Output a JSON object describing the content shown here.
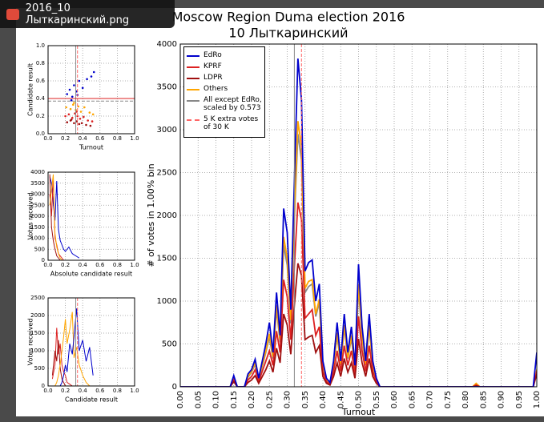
{
  "window": {
    "title": "2016_10 Лыткаринский.png"
  },
  "chart_data": [
    {
      "type": "line",
      "title": "Moscow Region Duma election 2016",
      "subtitle": "10 Лыткаринский",
      "x_label": "Turnout",
      "y_label": "# of votes in 1.00% bin",
      "x": [
        0,
        0.14,
        0.15,
        0.16,
        0.17,
        0.18,
        0.19,
        0.2,
        0.21,
        0.22,
        0.23,
        0.24,
        0.25,
        0.26,
        0.27,
        0.28,
        0.29,
        0.3,
        0.31,
        0.32,
        0.33,
        0.34,
        0.35,
        0.36,
        0.37,
        0.38,
        0.39,
        0.4,
        0.41,
        0.42,
        0.43,
        0.44,
        0.45,
        0.46,
        0.47,
        0.48,
        0.49,
        0.5,
        0.51,
        0.52,
        0.53,
        0.54,
        0.55,
        0.56,
        0.57,
        0.58,
        0.82,
        0.83,
        0.84,
        0.99,
        1.0
      ],
      "series": [
        {
          "name": "All except EdRo, scaled by 0.573",
          "color": "#888888",
          "values": [
            0,
            0,
            100,
            0,
            0,
            0,
            110,
            170,
            260,
            80,
            240,
            400,
            580,
            330,
            900,
            520,
            1650,
            1420,
            740,
            1950,
            2950,
            2650,
            1100,
            1170,
            1200,
            820,
            980,
            250,
            85,
            40,
            250,
            600,
            250,
            690,
            330,
            570,
            200,
            1150,
            570,
            250,
            690,
            250,
            85,
            0,
            0,
            0,
            0,
            35,
            0,
            0,
            190
          ]
        },
        {
          "name": "Others",
          "color": "#ffa500",
          "values": [
            0,
            0,
            110,
            0,
            0,
            0,
            120,
            180,
            280,
            90,
            260,
            420,
            620,
            350,
            950,
            550,
            1750,
            1500,
            780,
            2050,
            3100,
            2800,
            1150,
            1230,
            1250,
            850,
            1020,
            260,
            90,
            40,
            260,
            630,
            260,
            720,
            340,
            600,
            210,
            1200,
            600,
            260,
            720,
            260,
            90,
            0,
            0,
            0,
            0,
            40,
            0,
            0,
            200
          ]
        },
        {
          "name": "KPRF",
          "color": "#dd2222",
          "values": [
            0,
            0,
            80,
            0,
            0,
            0,
            80,
            120,
            200,
            60,
            180,
            300,
            420,
            250,
            650,
            400,
            1250,
            1050,
            550,
            1400,
            2150,
            1950,
            800,
            850,
            900,
            600,
            700,
            180,
            60,
            30,
            180,
            420,
            180,
            480,
            250,
            420,
            150,
            820,
            420,
            180,
            480,
            180,
            60,
            0,
            0,
            0,
            0,
            20,
            0,
            0,
            180
          ]
        },
        {
          "name": "LDPR",
          "color": "#a01010",
          "values": [
            0,
            0,
            60,
            0,
            0,
            0,
            50,
            80,
            130,
            40,
            120,
            200,
            300,
            170,
            450,
            280,
            850,
            720,
            380,
            950,
            1440,
            1300,
            550,
            580,
            600,
            400,
            480,
            120,
            40,
            20,
            120,
            280,
            120,
            330,
            170,
            280,
            100,
            560,
            280,
            120,
            330,
            120,
            40,
            0,
            0,
            0,
            0,
            10,
            0,
            0,
            150
          ]
        },
        {
          "name": "EdRo",
          "color": "#0000cc",
          "values": [
            0,
            0,
            130,
            0,
            0,
            0,
            150,
            200,
            320,
            100,
            300,
            500,
            750,
            400,
            1100,
            600,
            2080,
            1800,
            900,
            2400,
            3830,
            3350,
            1350,
            1450,
            1480,
            1000,
            1200,
            300,
            100,
            50,
            300,
            750,
            300,
            850,
            400,
            700,
            250,
            1430,
            700,
            300,
            850,
            300,
            100,
            0,
            0,
            0,
            0,
            0,
            0,
            0,
            400
          ]
        }
      ],
      "legend_order": [
        4,
        2,
        3,
        1,
        0
      ],
      "vlines": [
        {
          "value": 0.32,
          "color": "#888888"
        },
        {
          "value": 0.34,
          "color": "#ff6666",
          "dashed": true,
          "name": "5 K extra votes of 30 K"
        }
      ],
      "xlim": [
        0,
        1
      ],
      "ylim": [
        0,
        4000
      ],
      "xticks": [
        {
          "value": 0,
          "label": "0.00"
        },
        {
          "value": 0.05,
          "label": "0.05"
        },
        {
          "value": 0.1,
          "label": "0.10"
        },
        {
          "value": 0.15,
          "label": "0.15"
        },
        {
          "value": 0.2,
          "label": "0.20"
        },
        {
          "value": 0.25,
          "label": "0.25"
        },
        {
          "value": 0.3,
          "label": "0.30"
        },
        {
          "value": 0.35,
          "label": "0.35"
        },
        {
          "value": 0.4,
          "label": "0.40"
        },
        {
          "value": 0.45,
          "label": "0.45"
        },
        {
          "value": 0.5,
          "label": "0.50"
        },
        {
          "value": 0.55,
          "label": "0.55"
        },
        {
          "value": 0.6,
          "label": "0.60"
        },
        {
          "value": 0.65,
          "label": "0.65"
        },
        {
          "value": 0.7,
          "label": "0.70"
        },
        {
          "value": 0.75,
          "label": "0.75"
        },
        {
          "value": 0.8,
          "label": "0.80"
        },
        {
          "value": 0.85,
          "label": "0.85"
        },
        {
          "value": 0.9,
          "label": "0.90"
        },
        {
          "value": 0.95,
          "label": "0.95"
        },
        {
          "value": 1,
          "label": "1.00"
        }
      ],
      "yticks": [
        0,
        500,
        1000,
        1500,
        2000,
        2500,
        3000,
        3500,
        4000
      ],
      "grid": true
    },
    {
      "type": "scatter",
      "x_label": "Turnout",
      "y_label": "Candidate result",
      "series": [
        {
          "color": "#0000cc",
          "x": [
            0.22,
            0.25,
            0.28,
            0.3,
            0.33,
            0.36,
            0.4,
            0.45,
            0.5,
            0.53,
            0.27,
            0.34
          ],
          "values": [
            0.45,
            0.5,
            0.42,
            0.55,
            0.48,
            0.6,
            0.52,
            0.62,
            0.65,
            0.7,
            0.38,
            0.44
          ]
        },
        {
          "color": "#ffa500",
          "x": [
            0.21,
            0.26,
            0.29,
            0.32,
            0.35,
            0.38,
            0.42,
            0.48,
            0.52,
            0.3
          ],
          "values": [
            0.3,
            0.28,
            0.33,
            0.27,
            0.31,
            0.25,
            0.3,
            0.24,
            0.22,
            0.35
          ]
        },
        {
          "color": "#dd2222",
          "x": [
            0.2,
            0.24,
            0.28,
            0.31,
            0.34,
            0.37,
            0.41,
            0.46,
            0.51,
            0.33
          ],
          "values": [
            0.2,
            0.22,
            0.18,
            0.23,
            0.2,
            0.17,
            0.19,
            0.15,
            0.14,
            0.25
          ]
        },
        {
          "color": "#a01010",
          "x": [
            0.22,
            0.26,
            0.3,
            0.33,
            0.36,
            0.39,
            0.44,
            0.49,
            0.27
          ],
          "values": [
            0.13,
            0.15,
            0.12,
            0.14,
            0.11,
            0.12,
            0.1,
            0.09,
            0.16
          ]
        }
      ],
      "hlines": [
        {
          "value": 0.4,
          "color": "#dd2222"
        },
        {
          "value": 0.37,
          "color": "#888888",
          "dashed": true
        }
      ],
      "vlines": [
        {
          "value": 0.32,
          "color": "#888888"
        },
        {
          "value": 0.34,
          "color": "#ff6666",
          "dashed": true
        }
      ],
      "xlim": [
        0,
        1
      ],
      "ylim": [
        0,
        1
      ],
      "xticks": [
        {
          "value": 0,
          "label": "0.0"
        },
        {
          "value": 0.2,
          "label": "0.2"
        },
        {
          "value": 0.4,
          "label": "0.4"
        },
        {
          "value": 0.6,
          "label": "0.6"
        },
        {
          "value": 0.8,
          "label": "0.8"
        },
        {
          "value": 1,
          "label": "1.0"
        }
      ],
      "yticks": [
        {
          "value": 0,
          "label": "0.0"
        },
        {
          "value": 0.2,
          "label": "0.2"
        },
        {
          "value": 0.4,
          "label": "0.4"
        },
        {
          "value": 0.6,
          "label": "0.6"
        },
        {
          "value": 0.8,
          "label": "0.8"
        },
        {
          "value": 1,
          "label": "1.0"
        }
      ],
      "grid": true
    },
    {
      "type": "line",
      "x_label": "Absolute candidate result",
      "y_label": "Votes received",
      "x": [
        0.02,
        0.04,
        0.06,
        0.08,
        0.1,
        0.12,
        0.14,
        0.16,
        0.18,
        0.2,
        0.24,
        0.28,
        0.32,
        0.36
      ],
      "series": [
        {
          "color": "#0000cc",
          "values": [
            3800,
            3500,
            2600,
            1800,
            3600,
            1400,
            900,
            700,
            500,
            400,
            600,
            300,
            200,
            100
          ]
        },
        {
          "color": "#dd2222",
          "values": [
            3000,
            2000,
            3700,
            1000,
            700,
            300,
            200,
            100,
            0,
            0,
            0,
            0,
            0,
            0
          ]
        },
        {
          "color": "#a01010",
          "values": [
            3900,
            1500,
            900,
            500,
            200,
            100,
            0,
            0,
            0,
            0,
            0,
            0,
            0,
            0
          ]
        },
        {
          "color": "#ffa500",
          "values": [
            2500,
            3200,
            3900,
            1200,
            600,
            300,
            100,
            0,
            0,
            0,
            0,
            0,
            0,
            0
          ]
        }
      ],
      "xlim": [
        0,
        1
      ],
      "ylim": [
        0,
        4000
      ],
      "xticks": [
        {
          "value": 0,
          "label": "0.0"
        },
        {
          "value": 0.2,
          "label": "0.2"
        },
        {
          "value": 0.4,
          "label": "0.4"
        },
        {
          "value": 0.6,
          "label": "0.6"
        },
        {
          "value": 0.8,
          "label": "0.8"
        },
        {
          "value": 1,
          "label": "1.0"
        }
      ],
      "yticks": [
        0,
        500,
        1000,
        1500,
        2000,
        2500,
        3000,
        3500,
        4000
      ],
      "grid": true
    },
    {
      "type": "line",
      "x_label": "Candidate result",
      "y_label": "Votes received",
      "x": [
        0.05,
        0.08,
        0.1,
        0.12,
        0.14,
        0.16,
        0.18,
        0.2,
        0.22,
        0.25,
        0.28,
        0.3,
        0.33,
        0.36,
        0.4,
        0.44,
        0.48,
        0.52
      ],
      "series": [
        {
          "color": "#dd2222",
          "values": [
            200,
            600,
            1650,
            900,
            1200,
            600,
            400,
            300,
            100,
            50,
            0,
            0,
            0,
            0,
            0,
            0,
            0,
            0
          ]
        },
        {
          "color": "#a01010",
          "values": [
            300,
            1000,
            700,
            1300,
            500,
            200,
            100,
            0,
            0,
            0,
            0,
            0,
            0,
            0,
            0,
            0,
            0,
            0
          ]
        },
        {
          "color": "#ffa500",
          "values": [
            0,
            0,
            100,
            300,
            600,
            1000,
            1400,
            1900,
            1200,
            1600,
            2100,
            800,
            1100,
            600,
            300,
            100,
            0,
            0
          ]
        },
        {
          "color": "#0000cc",
          "values": [
            0,
            0,
            0,
            0,
            0,
            100,
            300,
            600,
            400,
            1200,
            900,
            1400,
            2200,
            1000,
            1300,
            700,
            1100,
            300
          ]
        }
      ],
      "vlines": [
        {
          "value": 0.32,
          "color": "#888888"
        },
        {
          "value": 0.34,
          "color": "#ff6666",
          "dashed": true
        }
      ],
      "xlim": [
        0,
        1
      ],
      "ylim": [
        0,
        2500
      ],
      "xticks": [
        {
          "value": 0,
          "label": "0.0"
        },
        {
          "value": 0.2,
          "label": "0.2"
        },
        {
          "value": 0.4,
          "label": "0.4"
        },
        {
          "value": 0.6,
          "label": "0.6"
        },
        {
          "value": 0.8,
          "label": "0.8"
        },
        {
          "value": 1,
          "label": "1.0"
        }
      ],
      "yticks": [
        0,
        500,
        1000,
        1500,
        2000,
        2500
      ],
      "grid": true
    }
  ]
}
